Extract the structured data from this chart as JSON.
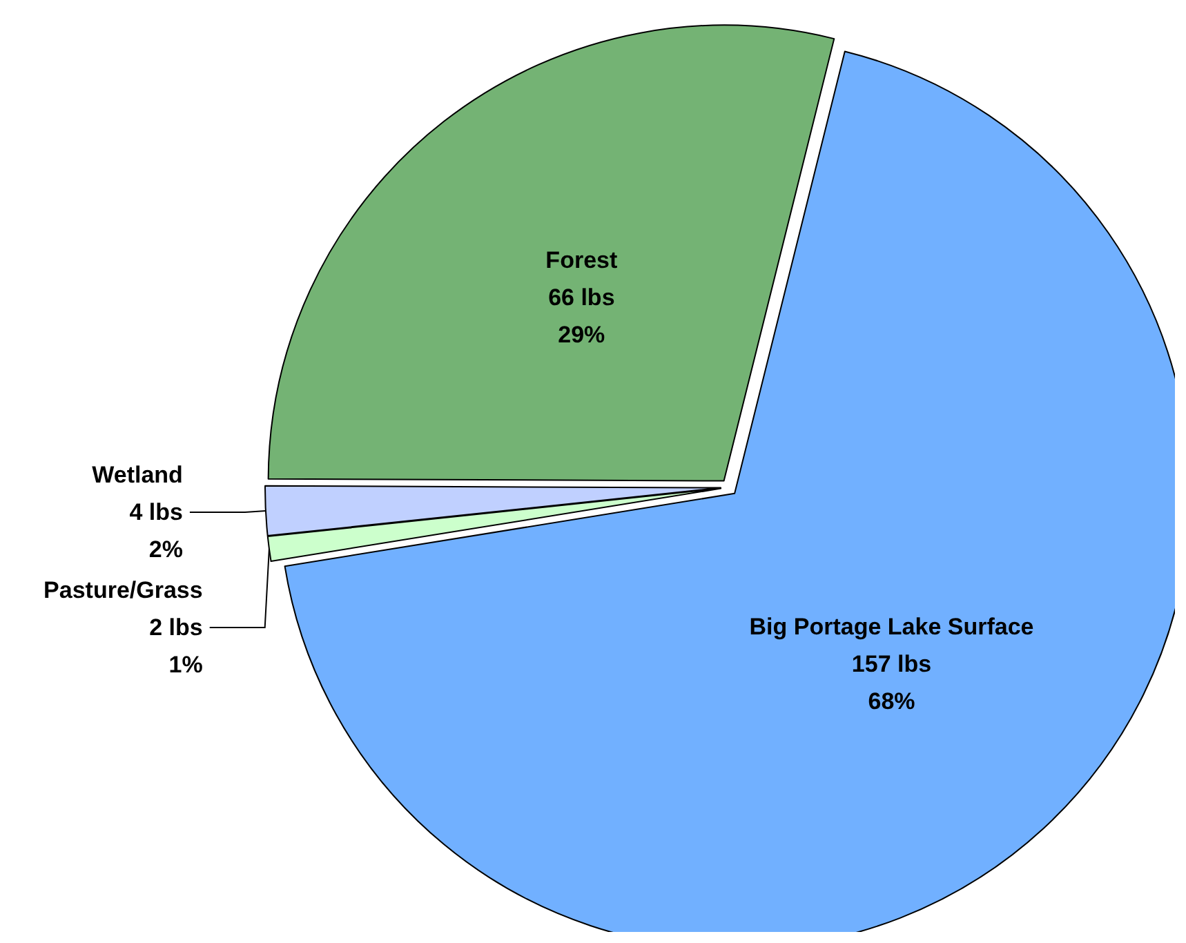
{
  "chart_data": {
    "type": "pie",
    "categories": [
      "Big Portage Lake Surface",
      "Pasture/Grass",
      "Wetland",
      "Forest"
    ],
    "values": [
      157,
      2,
      4,
      66
    ],
    "colors": [
      "#71b0ff",
      "#ccffcc",
      "#c0d0ff",
      "#74b374"
    ],
    "value_labels": [
      "157 lbs\n68%",
      "2 lbs\n1%",
      "4 lbs\n2%",
      "66 lbs\n29%"
    ]
  }
}
